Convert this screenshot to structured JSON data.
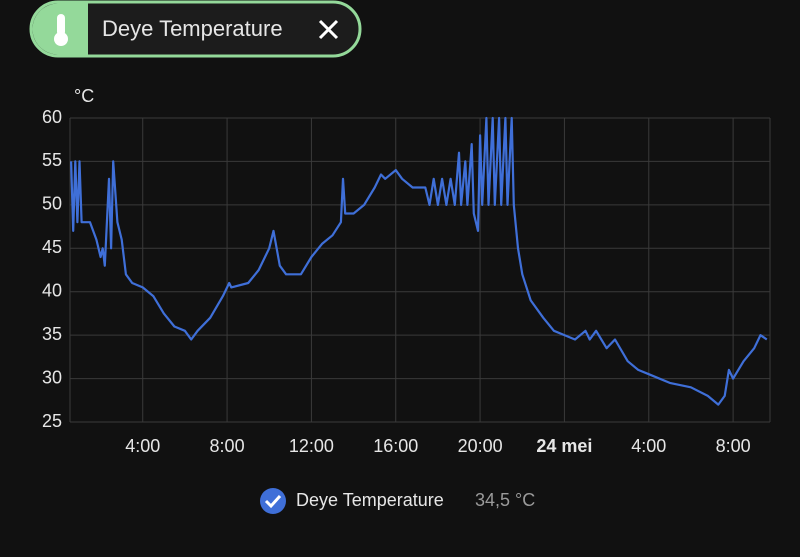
{
  "chip": {
    "label": "Deye Temperature"
  },
  "chart_data": {
    "type": "line",
    "y_unit": "°C",
    "x": [
      0.6,
      0.7,
      0.8,
      0.9,
      1.0,
      1.1,
      1.2,
      1.5,
      1.8,
      2.0,
      2.1,
      2.2,
      2.4,
      2.5,
      2.6,
      2.8,
      3.0,
      3.2,
      3.5,
      4.0,
      4.5,
      5.0,
      5.5,
      6.0,
      6.3,
      6.6,
      7.2,
      7.8,
      8.1,
      8.2,
      9.0,
      9.5,
      10.0,
      10.2,
      10.5,
      10.8,
      11.2,
      11.5,
      12.0,
      12.5,
      13.0,
      13.4,
      13.5,
      13.6,
      14.0,
      14.5,
      15.0,
      15.3,
      15.5,
      16.0,
      16.3,
      16.8,
      17.4,
      17.6,
      17.8,
      18.0,
      18.2,
      18.4,
      18.6,
      18.8,
      19.0,
      19.1,
      19.3,
      19.4,
      19.6,
      19.7,
      19.9,
      20.0,
      20.1,
      20.3,
      20.4,
      20.6,
      20.7,
      20.9,
      21.0,
      21.2,
      21.3,
      21.5,
      21.6,
      21.8,
      22.0,
      22.4,
      23.0,
      23.5,
      24.0,
      24.5,
      25.0,
      25.2,
      25.5,
      26.0,
      26.4,
      27.0,
      27.5,
      28.0,
      29.0,
      30.0,
      30.8,
      31.3,
      31.6,
      31.8,
      32.0,
      32.5,
      33.0,
      33.3,
      33.6
    ],
    "series": [
      {
        "name": "Deye Temperature",
        "color": "#3f6fd8",
        "values": [
          55,
          47,
          55,
          48,
          55,
          48,
          48,
          48,
          46,
          44,
          45,
          43,
          53,
          45,
          55,
          48,
          46,
          42,
          41,
          40.5,
          39.5,
          37.5,
          36,
          35.5,
          34.5,
          35.5,
          37,
          39.5,
          41,
          40.5,
          41,
          42.5,
          45,
          47,
          43,
          42,
          42,
          42,
          44,
          45.5,
          46.5,
          48,
          53,
          49,
          49,
          50,
          52,
          53.5,
          53,
          54,
          53,
          52,
          52,
          50,
          53,
          50,
          53,
          50,
          53,
          50,
          56,
          50,
          55,
          50,
          57,
          49,
          47,
          58,
          50,
          60,
          50,
          60,
          50,
          60,
          50,
          60,
          50,
          60,
          50,
          45,
          42,
          39,
          37,
          35.5,
          35,
          34.5,
          35.5,
          34.5,
          35.5,
          33.5,
          34.5,
          32,
          31,
          30.5,
          29.5,
          29,
          28,
          27,
          28,
          31,
          30,
          32,
          33.5,
          35,
          34.5
        ]
      }
    ],
    "current_value_label": "34,5 °C",
    "xlim": [
      0.55,
      33.75
    ],
    "xticks": [
      {
        "value": 4,
        "label": "4:00"
      },
      {
        "value": 8,
        "label": "8:00"
      },
      {
        "value": 12,
        "label": "12:00"
      },
      {
        "value": 16,
        "label": "16:00"
      },
      {
        "value": 20,
        "label": "20:00"
      },
      {
        "value": 24,
        "label": "24 mei"
      },
      {
        "value": 28,
        "label": "4:00"
      },
      {
        "value": 32,
        "label": "8:00"
      }
    ],
    "ylim": [
      25,
      60
    ],
    "yticks": [
      25,
      30,
      35,
      40,
      45,
      50,
      55,
      60
    ],
    "grid": true
  }
}
